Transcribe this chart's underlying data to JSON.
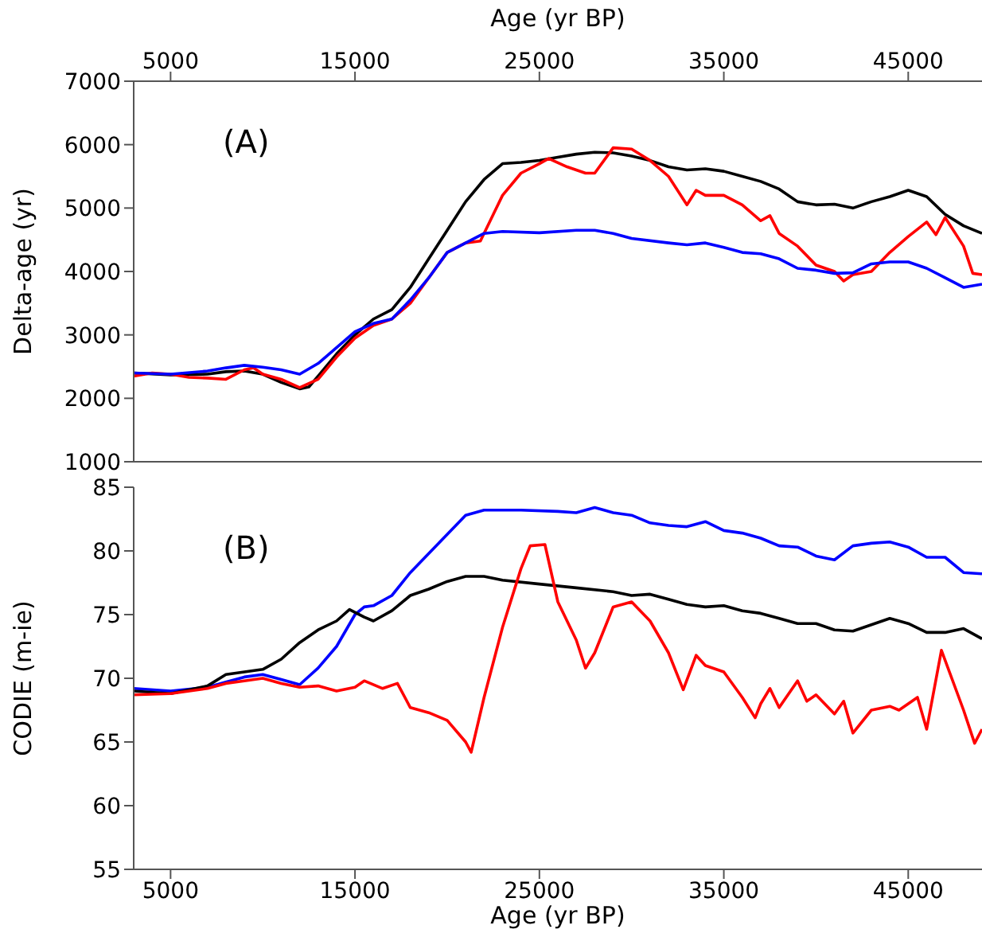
{
  "chart_data": [
    {
      "type": "line",
      "x2label": "Age (yr BP)",
      "ylabel": "Delta-age (yr)",
      "annotations": [
        "(A)"
      ],
      "xlim": [
        3000,
        49000
      ],
      "x2lim": [
        3000,
        49000
      ],
      "x2ticks": [
        5000,
        15000,
        25000,
        35000,
        45000
      ],
      "ylim": [
        1000,
        7000
      ],
      "yticks": [
        1000,
        2000,
        3000,
        4000,
        5000,
        6000,
        7000
      ],
      "tick_labels": "y",
      "marker": "none",
      "line_style": "solid",
      "series": [
        {
          "color": "#000000",
          "x": [
            3000,
            5000,
            7000,
            8000,
            9000,
            10000,
            11000,
            12000,
            12500,
            13000,
            14000,
            15000,
            16000,
            17000,
            18000,
            19000,
            20000,
            21000,
            22000,
            23000,
            24000,
            25000,
            26000,
            27000,
            28000,
            29000,
            30000,
            31000,
            32000,
            33000,
            34000,
            35000,
            36000,
            37000,
            38000,
            39000,
            40000,
            41000,
            42000,
            43000,
            44000,
            45000,
            46000,
            47000,
            48000,
            49000
          ],
          "values": [
            2400,
            2370,
            2380,
            2420,
            2430,
            2380,
            2250,
            2150,
            2180,
            2350,
            2700,
            3000,
            3250,
            3400,
            3750,
            4200,
            4650,
            5100,
            5450,
            5700,
            5720,
            5750,
            5800,
            5850,
            5880,
            5870,
            5820,
            5750,
            5650,
            5600,
            5620,
            5580,
            5500,
            5420,
            5300,
            5100,
            5050,
            5060,
            5000,
            5100,
            5180,
            5280,
            5180,
            4900,
            4720,
            4600
          ]
        },
        {
          "color": "#ff0000",
          "x": [
            3000,
            4000,
            5000,
            6000,
            7000,
            8000,
            9000,
            9500,
            10000,
            11000,
            12000,
            13000,
            14000,
            15000,
            16000,
            17000,
            18000,
            19000,
            20000,
            21000,
            21800,
            22500,
            23000,
            24000,
            25000,
            25500,
            26500,
            27500,
            28000,
            29000,
            30000,
            31000,
            32000,
            33000,
            33500,
            34000,
            35000,
            36000,
            37000,
            37500,
            38000,
            39000,
            40000,
            41000,
            41500,
            42000,
            43000,
            44000,
            45000,
            46000,
            46500,
            47000,
            48000,
            48500,
            49000
          ],
          "values": [
            2350,
            2400,
            2380,
            2330,
            2320,
            2300,
            2450,
            2480,
            2380,
            2300,
            2170,
            2300,
            2650,
            2950,
            3150,
            3250,
            3500,
            3900,
            4300,
            4450,
            4480,
            4900,
            5200,
            5550,
            5700,
            5780,
            5650,
            5550,
            5550,
            5950,
            5930,
            5750,
            5500,
            5050,
            5280,
            5200,
            5200,
            5050,
            4800,
            4880,
            4600,
            4400,
            4100,
            4000,
            3850,
            3950,
            4000,
            4300,
            4550,
            4780,
            4580,
            4850,
            4400,
            3970,
            3950
          ]
        },
        {
          "color": "#0000ff",
          "x": [
            3000,
            5000,
            7000,
            8000,
            9000,
            10000,
            11000,
            12000,
            13000,
            14000,
            15000,
            16000,
            17000,
            18000,
            19000,
            20000,
            21000,
            22000,
            23000,
            25000,
            27000,
            28000,
            29000,
            30000,
            32000,
            33000,
            34000,
            35000,
            36000,
            37000,
            38000,
            39000,
            40000,
            41000,
            42000,
            43000,
            44000,
            45000,
            46000,
            47000,
            48000,
            49000
          ],
          "values": [
            2400,
            2380,
            2430,
            2480,
            2520,
            2490,
            2450,
            2380,
            2550,
            2800,
            3050,
            3180,
            3250,
            3550,
            3900,
            4300,
            4450,
            4600,
            4630,
            4610,
            4650,
            4650,
            4600,
            4520,
            4450,
            4420,
            4450,
            4380,
            4300,
            4280,
            4200,
            4050,
            4020,
            3970,
            3980,
            4120,
            4150,
            4150,
            4050,
            3900,
            3750,
            3800
          ]
        }
      ]
    },
    {
      "type": "line",
      "xlabel": "Age (yr BP)",
      "ylabel": "CODIE (m-ie)",
      "annotations": [
        "(B)"
      ],
      "xlim": [
        3000,
        49000
      ],
      "xticks": [
        5000,
        15000,
        25000,
        35000,
        45000
      ],
      "ylim": [
        55,
        85
      ],
      "yticks": [
        55,
        60,
        65,
        70,
        75,
        80,
        85
      ],
      "marker": "none",
      "line_style": "solid",
      "series": [
        {
          "color": "#0000ff",
          "x": [
            3000,
            5000,
            7000,
            8000,
            9000,
            10000,
            11000,
            12000,
            13000,
            14000,
            15000,
            15500,
            16000,
            17000,
            18000,
            19000,
            20000,
            21000,
            22000,
            24000,
            26000,
            27000,
            28000,
            29000,
            30000,
            31000,
            32000,
            33000,
            34000,
            35000,
            36000,
            37000,
            38000,
            39000,
            40000,
            41000,
            42000,
            43000,
            44000,
            45000,
            46000,
            47000,
            48000,
            49000
          ],
          "values": [
            69.2,
            69.0,
            69.3,
            69.7,
            70.1,
            70.3,
            69.9,
            69.5,
            70.8,
            72.5,
            75.0,
            75.6,
            75.7,
            76.5,
            78.3,
            79.8,
            81.3,
            82.8,
            83.2,
            83.2,
            83.1,
            83.0,
            83.4,
            83.0,
            82.8,
            82.2,
            82.0,
            81.9,
            82.3,
            81.6,
            81.4,
            81.0,
            80.4,
            80.3,
            79.6,
            79.3,
            80.4,
            80.6,
            80.7,
            80.3,
            79.5,
            79.5,
            78.3,
            78.2
          ]
        },
        {
          "color": "#000000",
          "x": [
            3000,
            5000,
            7000,
            8000,
            9000,
            10000,
            11000,
            12000,
            13000,
            14000,
            14700,
            15500,
            16000,
            17000,
            18000,
            19000,
            20000,
            21000,
            22000,
            23000,
            25000,
            27000,
            29000,
            30000,
            31000,
            32000,
            33000,
            34000,
            35000,
            36000,
            37000,
            38000,
            39000,
            40000,
            41000,
            42000,
            43000,
            44000,
            45000,
            46000,
            47000,
            48000,
            49000
          ],
          "values": [
            69.0,
            68.8,
            69.4,
            70.3,
            70.5,
            70.7,
            71.5,
            72.8,
            73.8,
            74.5,
            75.4,
            74.8,
            74.5,
            75.3,
            76.5,
            77.0,
            77.6,
            78.0,
            78.0,
            77.7,
            77.4,
            77.1,
            76.8,
            76.5,
            76.6,
            76.2,
            75.8,
            75.6,
            75.7,
            75.3,
            75.1,
            74.7,
            74.3,
            74.3,
            73.8,
            73.7,
            74.2,
            74.7,
            74.3,
            73.6,
            73.6,
            73.9,
            73.1
          ]
        },
        {
          "color": "#ff0000",
          "x": [
            3000,
            5000,
            7000,
            8000,
            9000,
            10000,
            11000,
            12000,
            13000,
            14000,
            15000,
            15500,
            16500,
            17300,
            18000,
            19000,
            20000,
            21000,
            21300,
            22000,
            23000,
            24000,
            24500,
            25300,
            26000,
            27000,
            27500,
            28000,
            29000,
            30000,
            31000,
            32000,
            32800,
            33500,
            34000,
            35000,
            36000,
            36700,
            37000,
            37500,
            38000,
            39000,
            39500,
            40000,
            41000,
            41500,
            42000,
            43000,
            44000,
            44500,
            45500,
            46000,
            46800,
            48000,
            48600,
            49000
          ],
          "values": [
            68.7,
            68.8,
            69.2,
            69.6,
            69.8,
            70.0,
            69.6,
            69.3,
            69.4,
            69.0,
            69.3,
            69.8,
            69.2,
            69.6,
            67.7,
            67.3,
            66.7,
            65.0,
            64.2,
            68.5,
            74.0,
            78.6,
            80.4,
            80.5,
            76.0,
            73.0,
            70.8,
            72.0,
            75.6,
            76.0,
            74.5,
            72.0,
            69.1,
            71.8,
            71.0,
            70.5,
            68.5,
            66.9,
            68.0,
            69.2,
            67.7,
            69.8,
            68.2,
            68.7,
            67.2,
            68.2,
            65.7,
            67.5,
            67.8,
            67.5,
            68.5,
            66.0,
            72.2,
            67.5,
            64.9,
            66.0
          ]
        }
      ]
    }
  ]
}
